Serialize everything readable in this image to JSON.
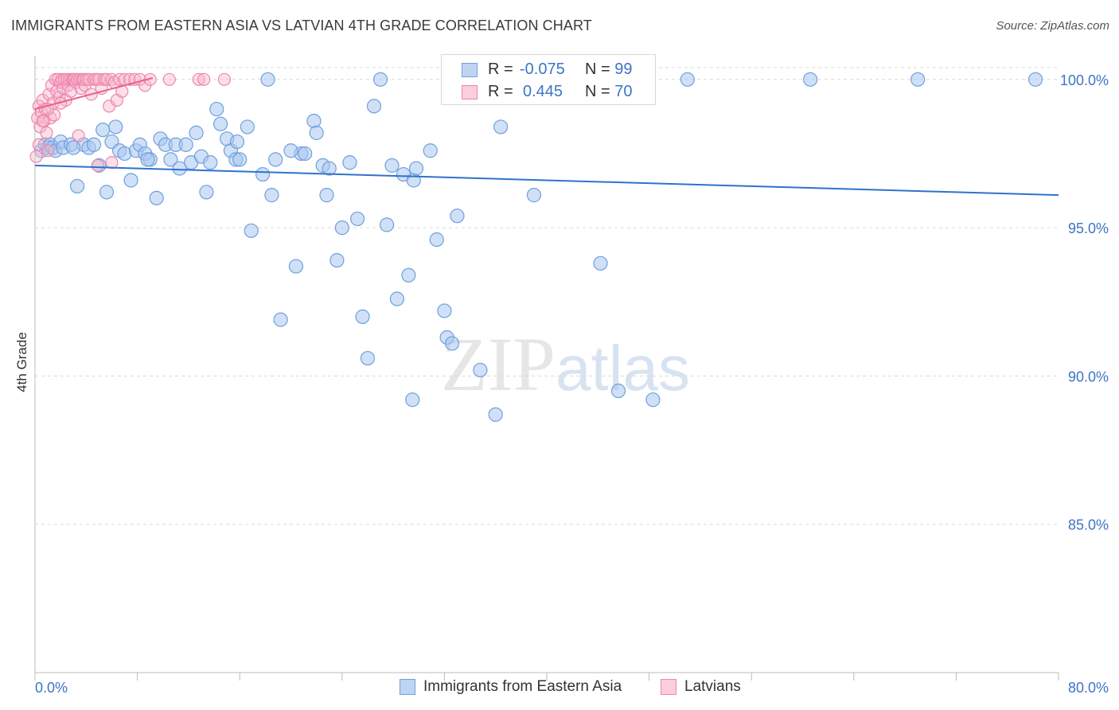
{
  "header": {
    "title": "IMMIGRANTS FROM EASTERN ASIA VS LATVIAN 4TH GRADE CORRELATION CHART",
    "source": "Source: ZipAtlas.com"
  },
  "watermark": {
    "part1": "ZIP",
    "part2": "atlas"
  },
  "legend_top": {
    "rows": [
      {
        "r_label": "R =",
        "r_value": "-0.075",
        "n_label": "N =",
        "n_value": "99",
        "color": "#6fa0df"
      },
      {
        "r_label": "R =",
        "r_value": "0.445",
        "n_label": "N =",
        "n_value": "70",
        "color": "#f28db0"
      }
    ]
  },
  "colors": {
    "blue_fill": "#a9c6ee",
    "blue_stroke": "#6fa0df",
    "blue_line": "#2f72cc",
    "pink_fill": "#f7b9cf",
    "pink_stroke": "#ee86ab",
    "pink_line": "#e8608f",
    "value_text": "#3d74c6",
    "grid": "#d9d9d9"
  },
  "chart_data": {
    "type": "scatter",
    "title": "IMMIGRANTS FROM EASTERN ASIA VS LATVIAN 4TH GRADE CORRELATION CHART",
    "xlabel": "",
    "ylabel": "4th Grade",
    "xlim": [
      0,
      80
    ],
    "ylim": [
      80,
      100.8
    ],
    "x_tick_labels": [
      "0.0%",
      "80.0%"
    ],
    "y_ticks": [
      85,
      90,
      95,
      100
    ],
    "y_tick_labels": [
      "85.0%",
      "90.0%",
      "95.0%",
      "100.0%"
    ],
    "grid": true,
    "legend_position": "bottom",
    "series": [
      {
        "name": "Immigrants from Eastern Asia",
        "r": -0.075,
        "n": 99,
        "trend": {
          "x": [
            0,
            80
          ],
          "y": [
            97.1,
            96.1
          ]
        },
        "points": [
          [
            0.5,
            97.6
          ],
          [
            0.8,
            97.8
          ],
          [
            1.0,
            97.7
          ],
          [
            1.2,
            97.8
          ],
          [
            1.4,
            97.7
          ],
          [
            1.6,
            97.6
          ],
          [
            2.0,
            97.9
          ],
          [
            2.2,
            97.7
          ],
          [
            2.8,
            97.8
          ],
          [
            3.3,
            96.4
          ],
          [
            3.8,
            97.8
          ],
          [
            4.2,
            97.7
          ],
          [
            4.6,
            97.8
          ],
          [
            5.0,
            97.1
          ],
          [
            5.3,
            98.3
          ],
          [
            5.6,
            96.2
          ],
          [
            6.0,
            97.9
          ],
          [
            6.3,
            98.4
          ],
          [
            6.6,
            97.6
          ],
          [
            7.0,
            97.5
          ],
          [
            7.5,
            96.6
          ],
          [
            7.9,
            97.6
          ],
          [
            8.2,
            97.8
          ],
          [
            8.6,
            97.5
          ],
          [
            9.0,
            97.3
          ],
          [
            9.5,
            96.0
          ],
          [
            9.8,
            98.0
          ],
          [
            10.2,
            97.8
          ],
          [
            10.6,
            97.3
          ],
          [
            11.0,
            97.8
          ],
          [
            11.3,
            97.0
          ],
          [
            11.8,
            97.8
          ],
          [
            12.2,
            97.2
          ],
          [
            12.6,
            98.2
          ],
          [
            13.0,
            97.4
          ],
          [
            13.4,
            96.2
          ],
          [
            13.7,
            97.2
          ],
          [
            14.2,
            99.0
          ],
          [
            14.5,
            98.5
          ],
          [
            15.0,
            98.0
          ],
          [
            15.3,
            97.6
          ],
          [
            15.7,
            97.3
          ],
          [
            16.0,
            97.3
          ],
          [
            16.6,
            98.4
          ],
          [
            16.9,
            94.9
          ],
          [
            17.8,
            96.8
          ],
          [
            18.2,
            100.0
          ],
          [
            18.5,
            96.1
          ],
          [
            18.8,
            97.3
          ],
          [
            19.2,
            91.9
          ],
          [
            20.4,
            93.7
          ],
          [
            20.8,
            97.5
          ],
          [
            21.1,
            97.5
          ],
          [
            21.8,
            98.6
          ],
          [
            22.0,
            98.2
          ],
          [
            22.5,
            97.1
          ],
          [
            22.8,
            96.1
          ],
          [
            23.0,
            97.0
          ],
          [
            23.6,
            93.9
          ],
          [
            24.0,
            95.0
          ],
          [
            24.6,
            97.2
          ],
          [
            25.2,
            95.3
          ],
          [
            25.6,
            92.0
          ],
          [
            26.0,
            90.6
          ],
          [
            26.5,
            99.1
          ],
          [
            27.0,
            100.0
          ],
          [
            27.5,
            95.1
          ],
          [
            27.9,
            97.1
          ],
          [
            28.3,
            92.6
          ],
          [
            28.8,
            96.8
          ],
          [
            29.2,
            93.4
          ],
          [
            29.6,
            96.6
          ],
          [
            29.8,
            97.0
          ],
          [
            30.9,
            97.6
          ],
          [
            31.4,
            94.6
          ],
          [
            32.0,
            92.2
          ],
          [
            32.2,
            91.3
          ],
          [
            32.6,
            91.1
          ],
          [
            33.0,
            95.4
          ],
          [
            34.8,
            90.2
          ],
          [
            35.0,
            100.0
          ],
          [
            36.0,
            88.7
          ],
          [
            36.4,
            98.4
          ],
          [
            37.2,
            100.0
          ],
          [
            39.0,
            96.1
          ],
          [
            40.0,
            100.0
          ],
          [
            44.2,
            93.8
          ],
          [
            45.6,
            89.5
          ],
          [
            48.3,
            89.2
          ],
          [
            51.0,
            100.0
          ],
          [
            60.6,
            100.0
          ],
          [
            69.0,
            100.0
          ],
          [
            78.2,
            100.0
          ],
          [
            29.5,
            89.2
          ],
          [
            15.8,
            97.9
          ],
          [
            3.0,
            97.7
          ],
          [
            8.8,
            97.3
          ],
          [
            20.0,
            97.6
          ],
          [
            33.5,
            100.0
          ]
        ]
      },
      {
        "name": "Latvians",
        "r": 0.445,
        "n": 70,
        "trend": {
          "x": [
            0,
            9.2
          ],
          "y": [
            99.0,
            100.05
          ]
        },
        "points": [
          [
            0.1,
            97.4
          ],
          [
            0.2,
            98.7
          ],
          [
            0.3,
            99.1
          ],
          [
            0.4,
            98.4
          ],
          [
            0.5,
            98.9
          ],
          [
            0.6,
            99.3
          ],
          [
            0.7,
            98.6
          ],
          [
            0.8,
            99.0
          ],
          [
            0.9,
            98.2
          ],
          [
            1.0,
            97.6
          ],
          [
            1.1,
            99.5
          ],
          [
            1.2,
            98.7
          ],
          [
            1.3,
            99.8
          ],
          [
            1.4,
            99.2
          ],
          [
            1.5,
            98.8
          ],
          [
            1.6,
            100.0
          ],
          [
            1.7,
            99.6
          ],
          [
            1.8,
            100.0
          ],
          [
            1.9,
            99.4
          ],
          [
            2.0,
            99.9
          ],
          [
            2.1,
            100.0
          ],
          [
            2.2,
            99.7
          ],
          [
            2.3,
            100.0
          ],
          [
            2.4,
            99.3
          ],
          [
            2.5,
            100.0
          ],
          [
            2.6,
            99.8
          ],
          [
            2.7,
            100.0
          ],
          [
            2.8,
            99.6
          ],
          [
            2.9,
            100.0
          ],
          [
            3.0,
            100.0
          ],
          [
            3.1,
            100.0
          ],
          [
            3.2,
            99.9
          ],
          [
            3.3,
            100.0
          ],
          [
            3.4,
            98.1
          ],
          [
            3.5,
            100.0
          ],
          [
            3.6,
            99.7
          ],
          [
            3.7,
            100.0
          ],
          [
            3.8,
            100.0
          ],
          [
            3.9,
            99.8
          ],
          [
            4.0,
            100.0
          ],
          [
            4.2,
            100.0
          ],
          [
            4.4,
            99.5
          ],
          [
            4.6,
            100.0
          ],
          [
            4.8,
            100.0
          ],
          [
            5.0,
            100.0
          ],
          [
            5.2,
            99.7
          ],
          [
            5.4,
            100.0
          ],
          [
            5.6,
            100.0
          ],
          [
            5.8,
            99.1
          ],
          [
            6.0,
            100.0
          ],
          [
            6.2,
            99.9
          ],
          [
            6.4,
            99.3
          ],
          [
            6.6,
            100.0
          ],
          [
            6.8,
            99.6
          ],
          [
            7.0,
            100.0
          ],
          [
            7.4,
            100.0
          ],
          [
            7.8,
            100.0
          ],
          [
            8.2,
            100.0
          ],
          [
            8.6,
            99.8
          ],
          [
            9.0,
            100.0
          ],
          [
            10.5,
            100.0
          ],
          [
            12.8,
            100.0
          ],
          [
            13.2,
            100.0
          ],
          [
            14.8,
            100.0
          ],
          [
            6.0,
            97.2
          ],
          [
            0.3,
            97.8
          ],
          [
            1.0,
            99.0
          ],
          [
            2.0,
            99.2
          ],
          [
            0.6,
            98.6
          ],
          [
            4.9,
            97.1
          ]
        ]
      }
    ]
  },
  "bottom_legend": [
    {
      "label": "Immigrants from Eastern Asia"
    },
    {
      "label": "Latvians"
    }
  ]
}
